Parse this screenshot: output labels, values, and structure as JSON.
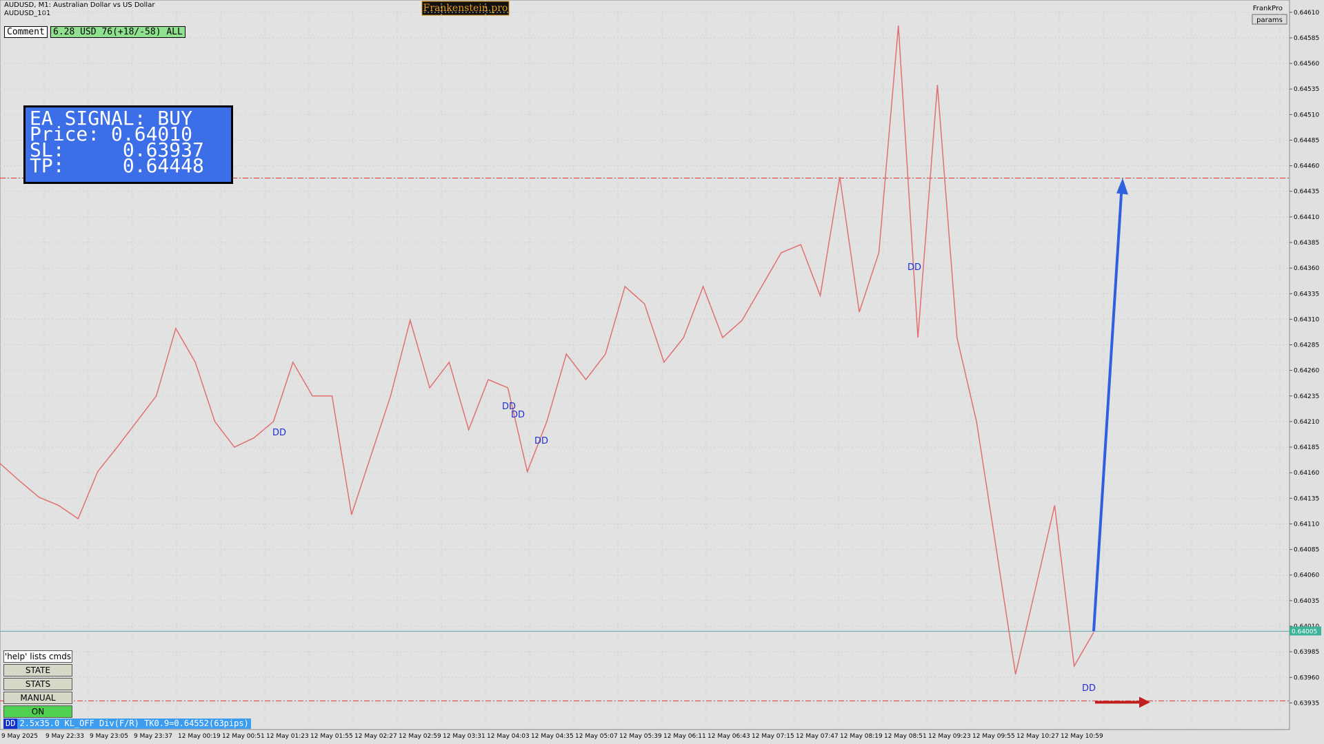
{
  "header": {
    "symbol": "AUDUSD, M1:  Australian Dollar vs US Dollar",
    "account": "AUDUSD_101",
    "brand": "Frankenstein.pro",
    "user": "FrankPro",
    "params": "params"
  },
  "comment": {
    "label": "Comment",
    "text": "6.28 USD 76(+18/-58) ALL"
  },
  "signal": {
    "lines": [
      "EA SIGNAL: BUY",
      "Price: 0.64010",
      "SL:     0.63937",
      "TP:     0.64448"
    ]
  },
  "buttons": [
    "'help' lists cmds",
    "STATE",
    "STATS",
    "MANUAL",
    "ON"
  ],
  "status": {
    "tag": "DD",
    "text": "2.5x35.0 KL_OFF Div(F/R) TK0.9=0.64552(63pips)"
  },
  "markers": [
    "DD",
    "DD",
    "DD",
    "DD",
    "DD",
    "DD"
  ],
  "chart": {
    "ylim": [
      0.63909,
      0.64622
    ],
    "yticks": [
      {
        "value": 0.6461,
        "label": "0.64610"
      },
      {
        "value": 0.64585,
        "label": "0.64585"
      },
      {
        "value": 0.6456,
        "label": "0.64560"
      },
      {
        "value": 0.64535,
        "label": "0.64535"
      },
      {
        "value": 0.6451,
        "label": "0.64510"
      },
      {
        "value": 0.64485,
        "label": "0.64485"
      },
      {
        "value": 0.6446,
        "label": "0.64460"
      },
      {
        "value": 0.64435,
        "label": "0.64435"
      },
      {
        "value": 0.6441,
        "label": "0.64410"
      },
      {
        "value": 0.64385,
        "label": "0.64385"
      },
      {
        "value": 0.6436,
        "label": "0.64360"
      },
      {
        "value": 0.64335,
        "label": "0.64335"
      },
      {
        "value": 0.6431,
        "label": "0.64310"
      },
      {
        "value": 0.64285,
        "label": "0.64285"
      },
      {
        "value": 0.6426,
        "label": "0.64260"
      },
      {
        "value": 0.64235,
        "label": "0.64235"
      },
      {
        "value": 0.6421,
        "label": "0.64210"
      },
      {
        "value": 0.64185,
        "label": "0.64185"
      },
      {
        "value": 0.6416,
        "label": "0.64160"
      },
      {
        "value": 0.64135,
        "label": "0.64135"
      },
      {
        "value": 0.6411,
        "label": "0.64110"
      },
      {
        "value": 0.64085,
        "label": "0.64085"
      },
      {
        "value": 0.6406,
        "label": "0.64060"
      },
      {
        "value": 0.64035,
        "label": "0.64035"
      },
      {
        "value": 0.6401,
        "label": "0.64010"
      },
      {
        "value": 0.63985,
        "label": "0.63985"
      },
      {
        "value": 0.6396,
        "label": "0.63960"
      },
      {
        "value": 0.63935,
        "label": "0.63935"
      }
    ],
    "xlabels": [
      "9 May 2025",
      "9 May 22:33",
      "9 May 23:05",
      "9 May 23:37",
      "12 May 00:19",
      "12 May 00:51",
      "12 May 01:23",
      "12 May 01:55",
      "12 May 02:27",
      "12 May 02:59",
      "12 May 03:31",
      "12 May 04:03",
      "12 May 04:35",
      "12 May 05:07",
      "12 May 05:39",
      "12 May 06:11",
      "12 May 06:43",
      "12 May 07:15",
      "12 May 07:47",
      "12 May 08:19",
      "12 May 08:51",
      "12 May 09:23",
      "12 May 09:55",
      "12 May 10:27",
      "12 May 10:59"
    ],
    "prices": [
      0.64169,
      0.64152,
      0.64136,
      0.64128,
      0.64115,
      0.64161,
      0.64185,
      0.6421,
      0.64235,
      0.64301,
      0.64268,
      0.6421,
      0.64185,
      0.64194,
      0.6421,
      0.64268,
      0.64235,
      0.64235,
      0.64119,
      0.64177,
      0.64235,
      0.64309,
      0.64243,
      0.64268,
      0.64202,
      0.64251,
      0.64243,
      0.64161,
      0.6421,
      0.64276,
      0.64251,
      0.64276,
      0.64342,
      0.64325,
      0.64268,
      0.64292,
      0.64342,
      0.64292,
      0.64309,
      0.64342,
      0.64375,
      0.64383,
      0.64333,
      0.64449,
      0.64317,
      0.64375,
      0.64597,
      0.64292,
      0.64539,
      0.64292,
      0.6421,
      0.64087,
      0.63963,
      0.64045,
      0.64128,
      0.63971,
      0.64004
    ],
    "tp_line": 0.64448,
    "sl_line": 0.63937,
    "current": 0.64005
  }
}
